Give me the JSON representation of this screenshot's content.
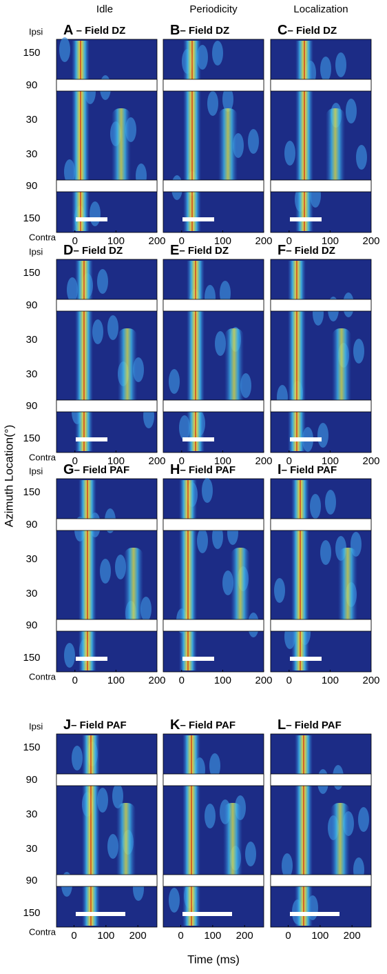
{
  "columns": [
    "Idle",
    "Periodicity",
    "Localization"
  ],
  "y_axis_label": "Azimuth Location(°)",
  "x_axis_label": "Time (ms)",
  "y_tick_labels": [
    "Ipsi",
    "150",
    "90",
    "30",
    "30",
    "90",
    "150",
    "Contra"
  ],
  "rows": [
    {
      "xlim": [
        -45,
        200
      ],
      "xticks": [
        0,
        100,
        200
      ],
      "panels": [
        {
          "letter": "A",
          "title": " – Field DZ"
        },
        {
          "letter": "B",
          "title": "– Field DZ"
        },
        {
          "letter": "C",
          "title": "– Field DZ"
        }
      ]
    },
    {
      "xlim": [
        -45,
        200
      ],
      "xticks": [
        0,
        100,
        200
      ],
      "panels": [
        {
          "letter": "D",
          "title": "– Field DZ"
        },
        {
          "letter": "E",
          "title": "– Field DZ"
        },
        {
          "letter": "F",
          "title": "– Field DZ"
        }
      ]
    },
    {
      "xlim": [
        -45,
        200
      ],
      "xticks": [
        0,
        100,
        200
      ],
      "panels": [
        {
          "letter": "G",
          "title": "– Field PAF"
        },
        {
          "letter": "H",
          "title": "– Field PAF"
        },
        {
          "letter": "I",
          "title": "– Field PAF"
        }
      ]
    },
    {
      "xlim": [
        -55,
        260
      ],
      "xticks": [
        0,
        100,
        200
      ],
      "panels": [
        {
          "letter": "J",
          "title": "– Field PAF"
        },
        {
          "letter": "K",
          "title": "– Field PAF"
        },
        {
          "letter": "L",
          "title": "– Field PAF"
        }
      ]
    }
  ]
}
